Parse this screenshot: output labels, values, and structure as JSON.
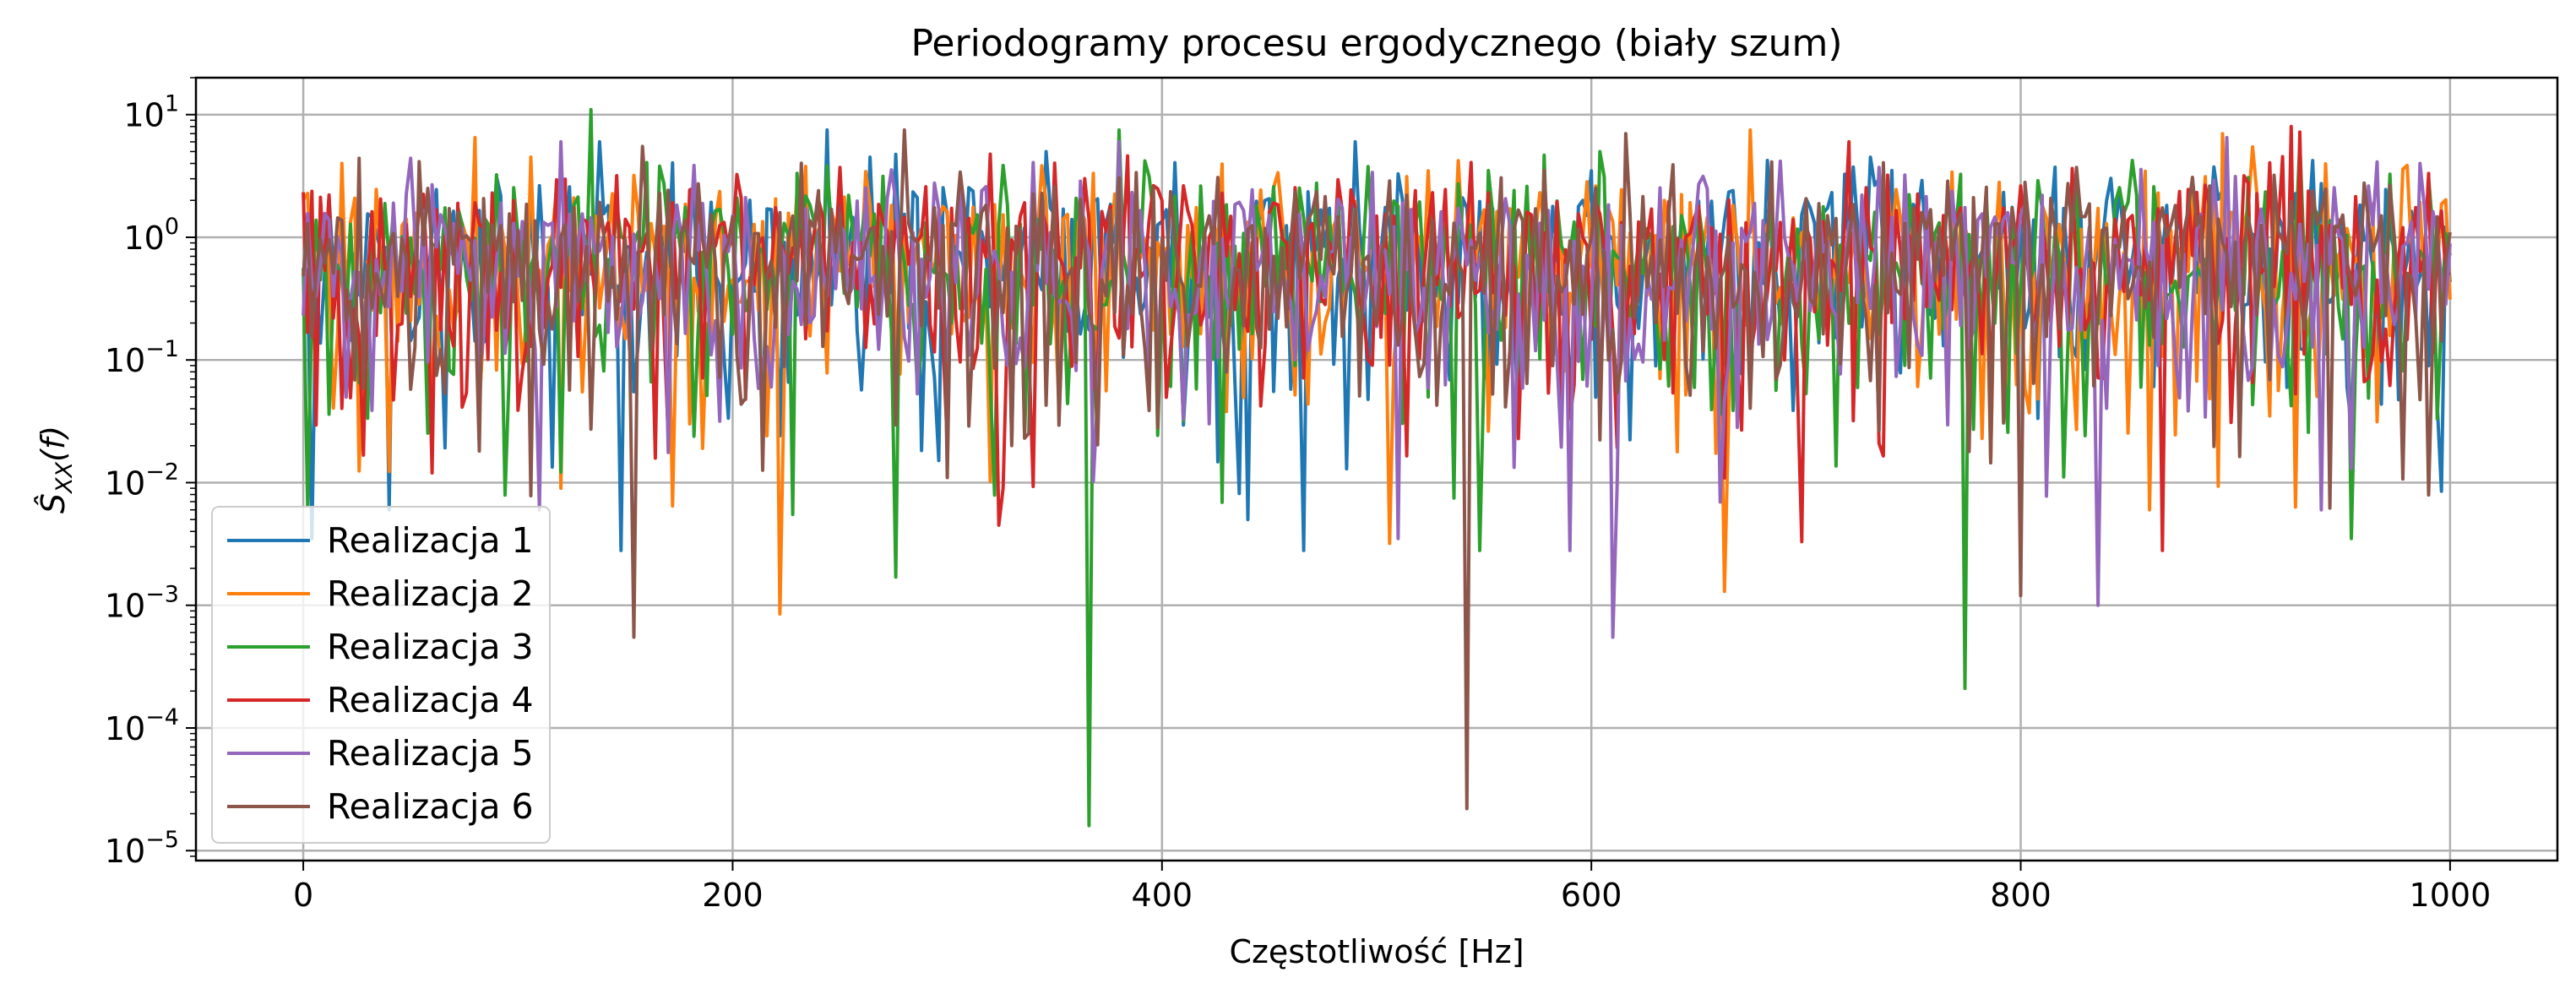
{
  "chart_data": {
    "type": "line",
    "title": "Periodogramy procesu ergodycznego (biały szum)",
    "xlabel": "Częstotliwość [Hz]",
    "ylabel": "Ŝ",
    "ylabel_sub": "XX",
    "ylabel_arg": "(f)",
    "xlim": [
      -50,
      1050
    ],
    "ylim": [
      8.3e-06,
      20
    ],
    "y_scale": "log",
    "grid": true,
    "legend_position": "lower-left",
    "x_ticks": [
      {
        "value": 0,
        "label": "0"
      },
      {
        "value": 200,
        "label": "200"
      },
      {
        "value": 400,
        "label": "400"
      },
      {
        "value": 600,
        "label": "600"
      },
      {
        "value": 800,
        "label": "800"
      },
      {
        "value": 1000,
        "label": "1000"
      }
    ],
    "y_ticks": [
      {
        "value": 10,
        "base": "10",
        "exp": "1"
      },
      {
        "value": 1,
        "base": "10",
        "exp": "0"
      },
      {
        "value": 0.1,
        "base": "10",
        "exp": "−1"
      },
      {
        "value": 0.01,
        "base": "10",
        "exp": "−2"
      },
      {
        "value": 0.001,
        "base": "10",
        "exp": "−3"
      },
      {
        "value": 0.0001,
        "base": "10",
        "exp": "−4"
      },
      {
        "value": 1e-05,
        "base": "10",
        "exp": "−5"
      }
    ],
    "x_range": [
      0,
      1000
    ],
    "point_count": 501,
    "series": [
      {
        "name": "Realizacja 1",
        "color": "#1f77b4",
        "seed": 11,
        "minima": [
          [
            3,
            0.0035
          ],
          [
            40,
            0.006
          ],
          [
            148,
            0.0028
          ],
          [
            465,
            0.0028
          ],
          [
            440,
            0.005
          ],
          [
            995,
            0.0085
          ]
        ],
        "peaks": [
          [
            243,
            7.5
          ],
          [
            138,
            6
          ],
          [
            490,
            6
          ]
        ]
      },
      {
        "name": "Realizacja 2",
        "color": "#ff7f0e",
        "seed": 23,
        "minima": [
          [
            222,
            0.00085
          ],
          [
            662,
            0.0013
          ],
          [
            505,
            0.0032
          ],
          [
            120,
            0.009
          ],
          [
            860,
            0.006
          ]
        ],
        "peaks": [
          [
            80,
            6.5
          ],
          [
            673,
            7.5
          ],
          [
            893,
            7
          ]
        ]
      },
      {
        "name": "Realizacja 3",
        "color": "#2ca02c",
        "seed": 37,
        "minima": [
          [
            366,
            1.6e-05
          ],
          [
            773,
            0.00021
          ],
          [
            275,
            0.0017
          ],
          [
            954,
            0.0035
          ],
          [
            548,
            0.0028
          ],
          [
            227,
            0.0055
          ]
        ],
        "peaks": [
          [
            133,
            11
          ],
          [
            379,
            7.5
          ],
          [
            930,
            6
          ]
        ]
      },
      {
        "name": "Realizacja 4",
        "color": "#d62728",
        "seed": 53,
        "minima": [
          [
            698,
            0.0033
          ],
          [
            323,
            0.0045
          ],
          [
            865,
            0.0028
          ],
          [
            60,
            0.012
          ]
        ],
        "peaks": [
          [
            925,
            8
          ],
          [
            930,
            7.2
          ],
          [
            720,
            6
          ]
        ]
      },
      {
        "name": "Realizacja 5",
        "color": "#9467bd",
        "seed": 71,
        "minima": [
          [
            610,
            0.00055
          ],
          [
            835,
            0.001
          ],
          [
            510,
            0.0035
          ],
          [
            590,
            0.0028
          ],
          [
            110,
            0.006
          ],
          [
            940,
            0.006
          ]
        ],
        "peaks": [
          [
            120,
            6
          ],
          [
            380,
            6
          ],
          [
            895,
            6.5
          ]
        ]
      },
      {
        "name": "Realizacja 6",
        "color": "#8c564b",
        "seed": 97,
        "minima": [
          [
            541,
            2.2e-05
          ],
          [
            153,
            0.00055
          ],
          [
            800,
            0.0012
          ],
          [
            300,
            0.011
          ],
          [
            944,
            0.0062
          ]
        ],
        "peaks": [
          [
            280,
            7.5
          ],
          [
            615,
            7
          ],
          [
            158,
            5.5
          ]
        ]
      }
    ]
  }
}
